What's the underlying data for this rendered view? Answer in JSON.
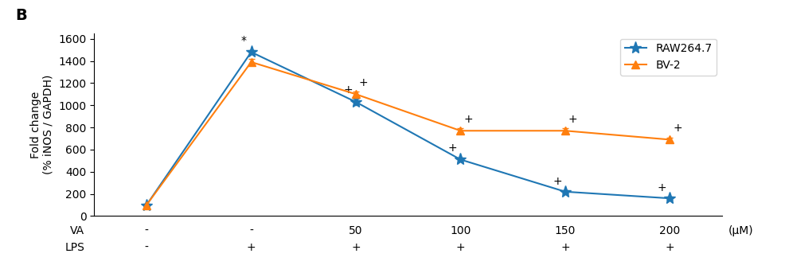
{
  "chart_data": {
    "type": "line",
    "panel_label": "B",
    "y_label": "Fold change\n(% iNOS / GAPDH)",
    "categories": [
      null,
      null,
      null,
      null,
      null,
      null
    ],
    "x_label_rows": [
      {
        "name": "VA",
        "labels": [
          "-",
          "-",
          "50",
          "100",
          "150",
          "200"
        ]
      },
      {
        "name": "LPS",
        "labels": [
          "-",
          "+",
          "+",
          "+",
          "+",
          "+"
        ]
      }
    ],
    "x_unit_label": "(μM)",
    "series": [
      {
        "name": "RAW264.7",
        "marker": "*",
        "values": [
          100,
          1480,
          1030,
          510,
          220,
          160
        ],
        "yerr": [
          10,
          20,
          30,
          20,
          15,
          15
        ]
      },
      {
        "name": "BV-2",
        "marker": "^",
        "values": [
          100,
          1390,
          1100,
          770,
          770,
          690
        ],
        "yerr": [
          10,
          25,
          25,
          20,
          20,
          20
        ]
      }
    ],
    "annotations": [
      {
        "series": "RAW264.7",
        "index": 1,
        "text": "*"
      },
      {
        "series": "RAW264.7",
        "index": 2,
        "text": "+"
      },
      {
        "series": "RAW264.7",
        "index": 3,
        "text": "+"
      },
      {
        "series": "RAW264.7",
        "index": 4,
        "text": "+"
      },
      {
        "series": "RAW264.7",
        "index": 5,
        "text": "+"
      },
      {
        "series": "BV-2",
        "index": 2,
        "text": "+"
      },
      {
        "series": "BV-2",
        "index": 3,
        "text": "+"
      },
      {
        "series": "BV-2",
        "index": 4,
        "text": "+"
      },
      {
        "series": "BV-2",
        "index": 5,
        "text": "+"
      }
    ],
    "ylim": [
      0,
      1650
    ],
    "yticks": [
      0,
      200,
      400,
      600,
      800,
      1000,
      1200,
      1400,
      1600
    ],
    "legend": "upper right",
    "grid": false
  }
}
